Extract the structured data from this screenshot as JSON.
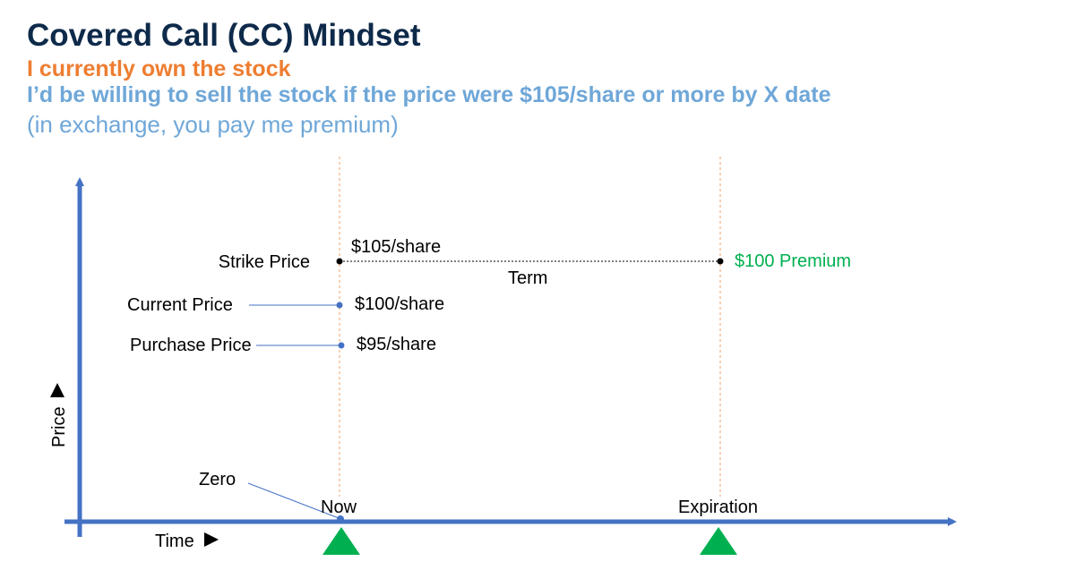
{
  "header": {
    "title": "Covered Call (CC) Mindset",
    "line1": "I currently own the stock",
    "line2": "I’d be willing to sell the stock if the price were $105/share or more by X date",
    "line3": "(in exchange, you pay me premium)"
  },
  "diagram": {
    "y_axis_label": "Price",
    "x_axis_label": "Time",
    "strike_label": "Strike Price",
    "strike_value": "$105/share",
    "current_label": "Current Price",
    "current_value": "$100/share",
    "purchase_label": "Purchase Price",
    "purchase_value": "$95/share",
    "term_label": "Term",
    "premium_label": "$100 Premium",
    "zero_label": "Zero",
    "now_label": "Now",
    "expiration_label": "Expiration",
    "colors": {
      "axis": "#4472c4",
      "guide": "#f4b183",
      "premium": "#00b050",
      "marker": "#00b050",
      "title": "#0e2a4a",
      "orange": "#ee7d31",
      "light_blue": "#6fa7d8"
    }
  }
}
